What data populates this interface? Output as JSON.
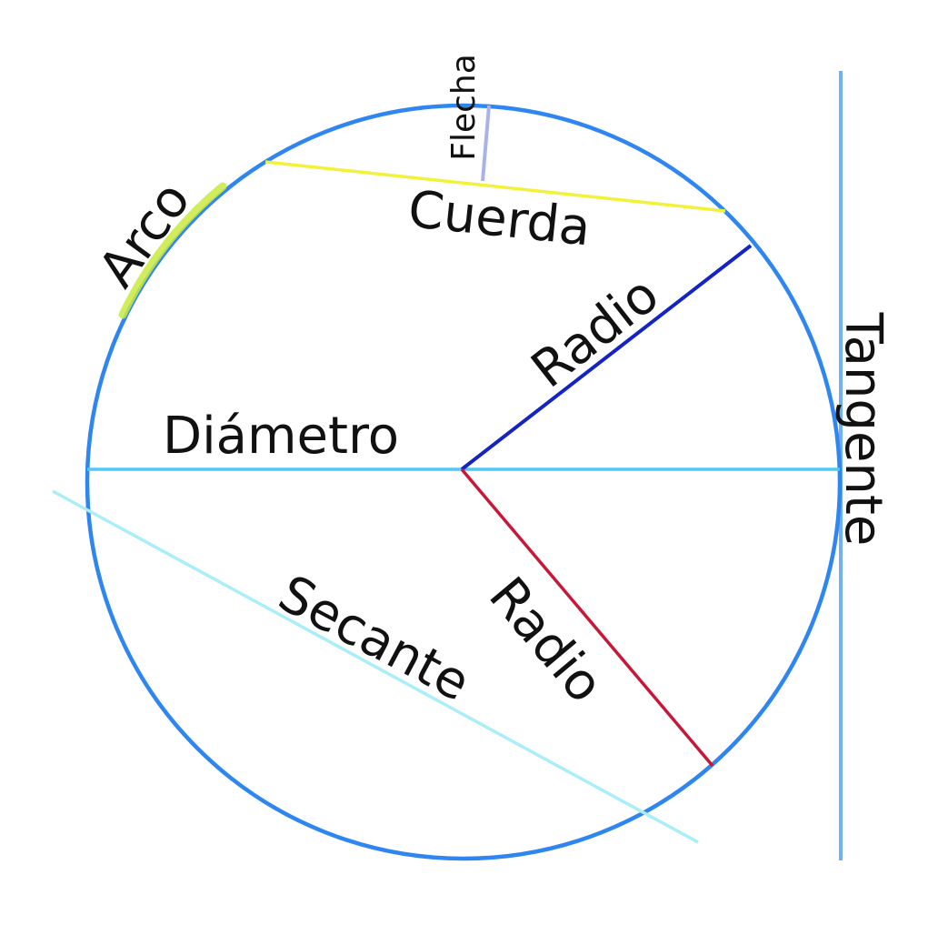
{
  "diagram": {
    "labels": {
      "flecha": "Flecha",
      "cuerda": "Cuerda",
      "arco": "Arco",
      "radio_upper": "Radio",
      "radio_lower": "Radio",
      "diametro": "Diámetro",
      "tangente": "Tangente",
      "secante": "Secante"
    },
    "colors": {
      "circle": "#2f86f0",
      "cuerda": "#f2f23a",
      "arco": "#c9ea3f",
      "flecha": "#a9b3ea",
      "radio_upper": "#1424c4",
      "radio_lower": "#c8183a",
      "diametro": "#4ec9f4",
      "tangente": "#72b0f6",
      "secante": "#aaeefa",
      "text": "#111111"
    }
  }
}
